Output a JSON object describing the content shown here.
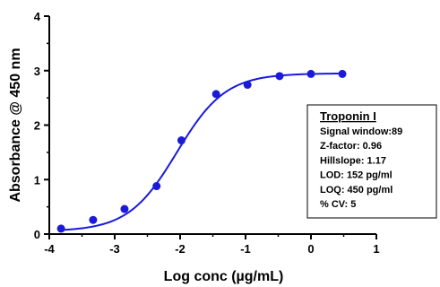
{
  "chart_data": {
    "type": "scatter",
    "title": "",
    "xlabel": "Log conc (µg/mL)",
    "ylabel": "Absorbance @ 450 nm",
    "xlim": [
      -4,
      1
    ],
    "ylim": [
      0,
      4
    ],
    "x_ticks": [
      "-4",
      "-3",
      "-2",
      "-1",
      "0",
      "1"
    ],
    "y_ticks": [
      "0",
      "1",
      "2",
      "3",
      "4"
    ],
    "grid": false,
    "legend_placement": "right",
    "colors": {
      "series": "#1a1adb"
    },
    "series": [
      {
        "name": "",
        "x": [
          -3.82,
          -3.33,
          -2.85,
          -2.36,
          -1.98,
          -1.45,
          -0.97,
          -0.48,
          0.0,
          0.48
        ],
        "y": [
          0.1,
          0.26,
          0.46,
          0.88,
          1.72,
          2.57,
          2.74,
          2.9,
          2.94,
          2.94
        ]
      }
    ],
    "fit": {
      "model": "4PL",
      "bottom": 0.05,
      "top": 2.95,
      "logEC50": -2.05,
      "hillslope": 1.17
    },
    "legend_box": {
      "title": "Troponin I",
      "lines": [
        "Signal window:89",
        "Z-factor: 0.96",
        "Hillslope: 1.17",
        "LOD: 152 pg/ml",
        "LOQ: 450 pg/ml",
        "% CV: 5"
      ]
    }
  }
}
